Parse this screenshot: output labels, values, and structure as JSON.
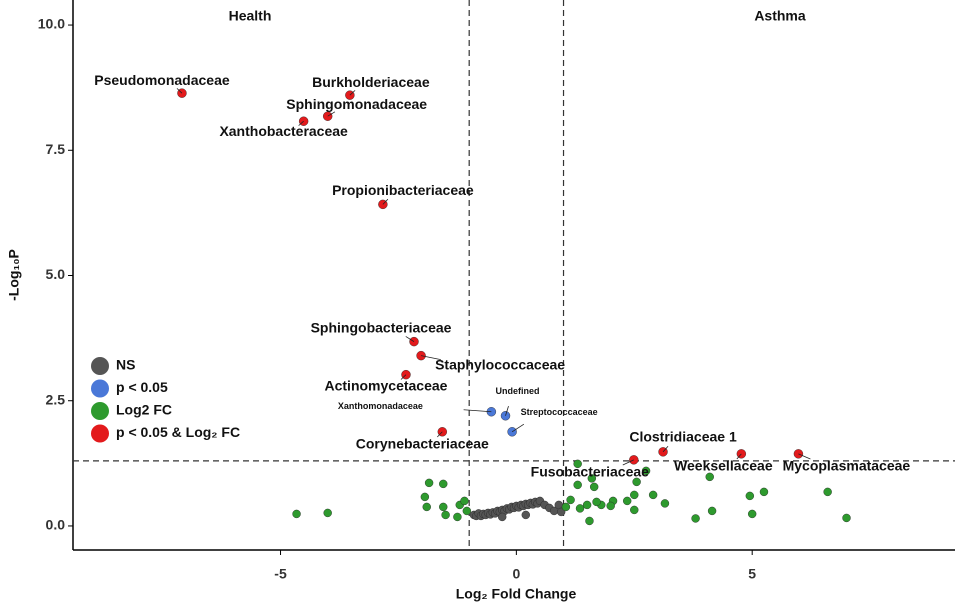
{
  "chart_data": {
    "type": "scatter",
    "xlabel": "Log₂ Fold Change",
    "ylabel": "-Log₁₀P",
    "annotations": [
      "Health",
      "Asthma"
    ],
    "xlim": [
      -9.4,
      9.3
    ],
    "ylim": [
      -0.48,
      10.5
    ],
    "xticks": [
      -5,
      0,
      5
    ],
    "yticks": [
      {
        "value": 0,
        "label": "0.0"
      },
      2.5,
      {
        "value": 5,
        "label": "5.0"
      },
      {
        "value": 7.5,
        "label": "7.5"
      },
      {
        "value": 10,
        "label": "10.0"
      }
    ],
    "vlines": [
      -1,
      1
    ],
    "hline": 1.3,
    "legend": "left",
    "series": [
      {
        "name": "NS",
        "color": "#555555",
        "x": [
          -0.9,
          -0.85,
          -0.8,
          -0.75,
          -0.7,
          -0.65,
          -0.6,
          -0.55,
          -0.5,
          -0.45,
          -0.4,
          -0.35,
          -0.3,
          -0.25,
          -0.2,
          -0.15,
          -0.1,
          -0.05,
          0,
          0.05,
          0.1,
          0.15,
          0.2,
          0.25,
          0.3,
          0.35,
          0.4,
          0.45,
          0.5,
          0.6,
          0.7,
          0.8,
          0.9,
          0.95,
          0.2,
          -0.3
        ],
        "y": [
          0.22,
          0.2,
          0.25,
          0.2,
          0.24,
          0.22,
          0.26,
          0.23,
          0.27,
          0.25,
          0.3,
          0.28,
          0.32,
          0.3,
          0.35,
          0.33,
          0.38,
          0.36,
          0.4,
          0.37,
          0.42,
          0.4,
          0.44,
          0.42,
          0.46,
          0.43,
          0.48,
          0.45,
          0.5,
          0.42,
          0.36,
          0.3,
          0.42,
          0.28,
          0.22,
          0.18
        ]
      },
      {
        "name": "p < 0.05",
        "color": "#4a78d8",
        "x": [
          -0.53,
          -0.23,
          -0.09
        ],
        "y": [
          2.28,
          2.2,
          1.88
        ],
        "labels": [
          "Xanthomonadaceae",
          "Undefined",
          "Streptococcaceae"
        ]
      },
      {
        "name": "Log2 FC",
        "color": "#2e9a2e",
        "x": [
          -4.66,
          -4.0,
          -1.94,
          -1.9,
          -1.85,
          -1.55,
          -1.5,
          -1.55,
          -1.2,
          -1.25,
          -1.05,
          -1.1,
          1.3,
          1.05,
          1.15,
          1.3,
          1.35,
          1.5,
          1.6,
          1.65,
          1.55,
          1.8,
          2.05,
          2.35,
          2.5,
          2.55,
          2.75,
          2.9,
          2.5,
          3.15,
          4.1,
          3.8,
          4.15,
          4.95,
          5.25,
          5.0,
          6.6,
          7.0,
          1.7,
          2.0
        ],
        "y": [
          0.24,
          0.26,
          0.58,
          0.38,
          0.86,
          0.84,
          0.22,
          0.38,
          0.42,
          0.18,
          0.3,
          0.5,
          1.24,
          0.38,
          0.52,
          0.82,
          0.35,
          0.42,
          0.95,
          0.78,
          0.1,
          0.42,
          0.5,
          0.5,
          0.62,
          0.88,
          1.1,
          0.62,
          0.32,
          0.45,
          0.98,
          0.15,
          0.3,
          0.6,
          0.68,
          0.24,
          0.68,
          0.16,
          0.48,
          0.4
        ]
      },
      {
        "name": "p < 0.05 & Log₂ FC",
        "color": "#e31a1c",
        "x": [
          -7.09,
          -3.53,
          -4.0,
          -4.51,
          -2.83,
          -2.17,
          -2.02,
          -2.34,
          -1.57,
          3.11,
          4.77,
          5.98,
          2.49
        ],
        "y": [
          8.64,
          8.6,
          8.18,
          8.08,
          6.42,
          3.68,
          3.4,
          3.02,
          1.88,
          1.48,
          1.44,
          1.44,
          1.32
        ],
        "labels": [
          "Pseudomonadaceae",
          "Burkholderiaceae",
          "Sphingomonadaceae",
          "Xanthobacteraceae",
          "Propionibacteriaceae",
          "Sphingobacteriaceae",
          "Staphylococcaceae",
          "Actinomycetaceae",
          "Corynebacteriaceae",
          "Clostridiaceae 1",
          "Weeksellaceae",
          "Mycoplasmataceae",
          "Fusobacteriaceae"
        ]
      }
    ]
  }
}
